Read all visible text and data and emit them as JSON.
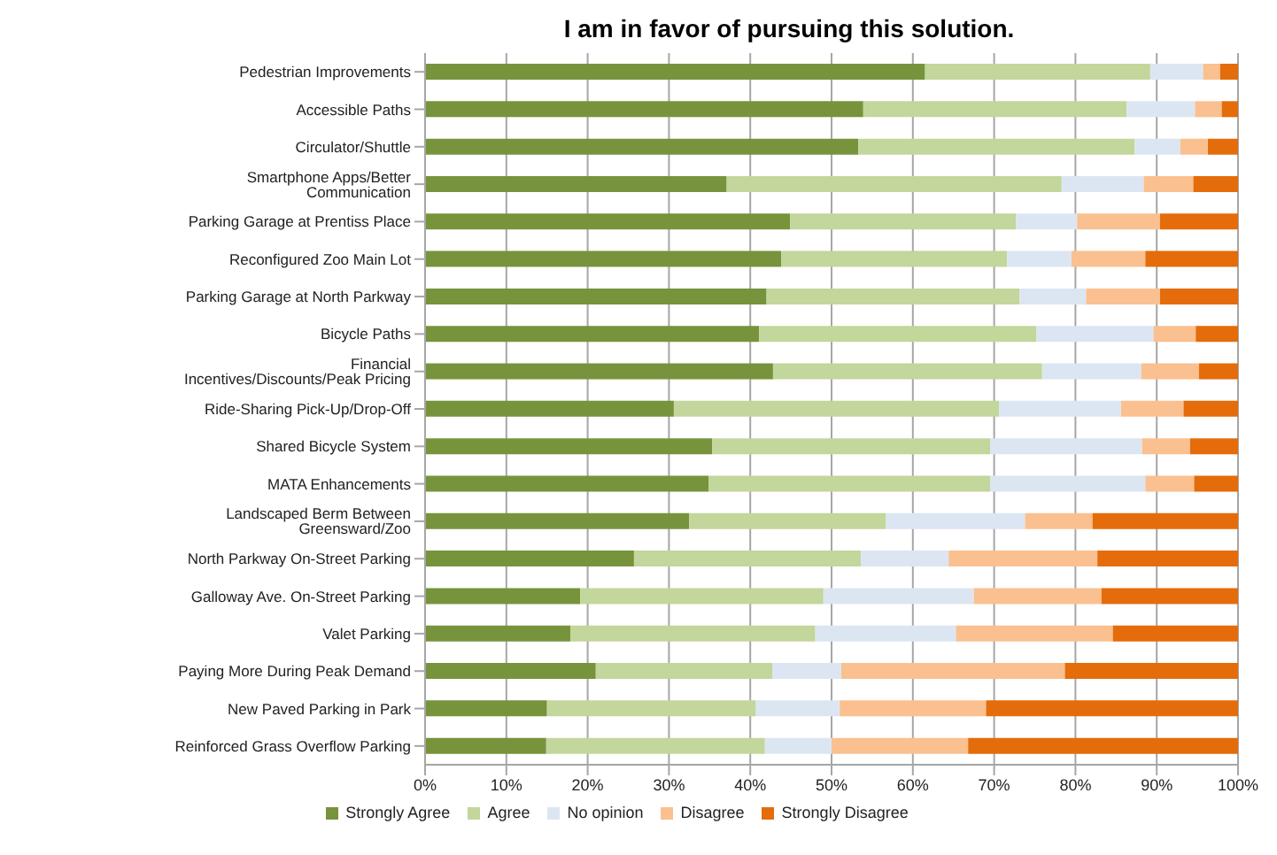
{
  "chart_data": {
    "type": "bar",
    "orientation": "horizontal",
    "stacked": true,
    "title": "I am in favor of pursuing this solution.",
    "categories": [
      "Pedestrian Improvements",
      "Accessible Paths",
      "Circulator/Shuttle",
      "Smartphone Apps/Better Communication",
      "Parking Garage at Prentiss Place",
      "Reconfigured Zoo Main Lot",
      "Parking Garage at North Parkway",
      "Bicycle Paths",
      "Financial Incentives/Discounts/Peak Pricing",
      "Ride-Sharing Pick-Up/Drop-Off",
      "Shared Bicycle System",
      "MATA Enhancements",
      "Landscaped Berm Between Greensward/Zoo",
      "North Parkway On-Street Parking",
      "Galloway Ave. On-Street Parking",
      "Valet Parking",
      "Paying More During Peak Demand",
      "New Paved Parking in Park",
      "Reinforced Grass Overflow Parking"
    ],
    "series": [
      {
        "name": "Strongly Agree",
        "color": "#77933c",
        "values": [
          61.5,
          53.9,
          53.3,
          37.1,
          44.9,
          43.8,
          42.0,
          41.1,
          42.8,
          30.6,
          35.3,
          34.9,
          32.5,
          25.7,
          19.1,
          17.9,
          21.0,
          15.0,
          14.9
        ]
      },
      {
        "name": "Agree",
        "color": "#c3d69b",
        "values": [
          27.7,
          32.4,
          34.0,
          41.2,
          27.8,
          27.8,
          31.1,
          34.1,
          33.1,
          40.0,
          34.2,
          34.6,
          24.2,
          27.9,
          29.9,
          30.1,
          21.7,
          25.7,
          26.9
        ]
      },
      {
        "name": "No opinion",
        "color": "#dce6f2",
        "values": [
          6.5,
          8.4,
          5.6,
          10.1,
          7.5,
          7.9,
          8.2,
          14.4,
          12.2,
          15.0,
          18.7,
          19.1,
          17.1,
          10.8,
          18.5,
          17.3,
          8.5,
          10.3,
          8.2
        ]
      },
      {
        "name": "Disagree",
        "color": "#fac090",
        "values": [
          2.1,
          3.3,
          3.4,
          6.1,
          10.2,
          9.1,
          9.1,
          5.2,
          7.1,
          7.7,
          5.9,
          6.0,
          8.3,
          18.3,
          15.7,
          19.3,
          27.5,
          18.0,
          16.8
        ]
      },
      {
        "name": "Strongly Disagree",
        "color": "#e46c0a",
        "values": [
          2.2,
          2.0,
          3.7,
          5.5,
          9.6,
          11.4,
          9.6,
          5.2,
          4.8,
          6.7,
          5.9,
          5.4,
          17.9,
          17.3,
          16.8,
          15.4,
          21.3,
          31.0,
          33.2
        ]
      }
    ],
    "xlim": [
      0,
      100
    ],
    "xticks": [
      {
        "value": 0,
        "label": "0%"
      },
      {
        "value": 10,
        "label": "10%"
      },
      {
        "value": 20,
        "label": "20%"
      },
      {
        "value": 30,
        "label": "30%"
      },
      {
        "value": 40,
        "label": "40%"
      },
      {
        "value": 50,
        "label": "50%"
      },
      {
        "value": 60,
        "label": "60%"
      },
      {
        "value": 70,
        "label": "70%"
      },
      {
        "value": 80,
        "label": "80%"
      },
      {
        "value": 90,
        "label": "90%"
      },
      {
        "value": 100,
        "label": "100%"
      }
    ],
    "grid": "x",
    "legend": "bottom"
  }
}
